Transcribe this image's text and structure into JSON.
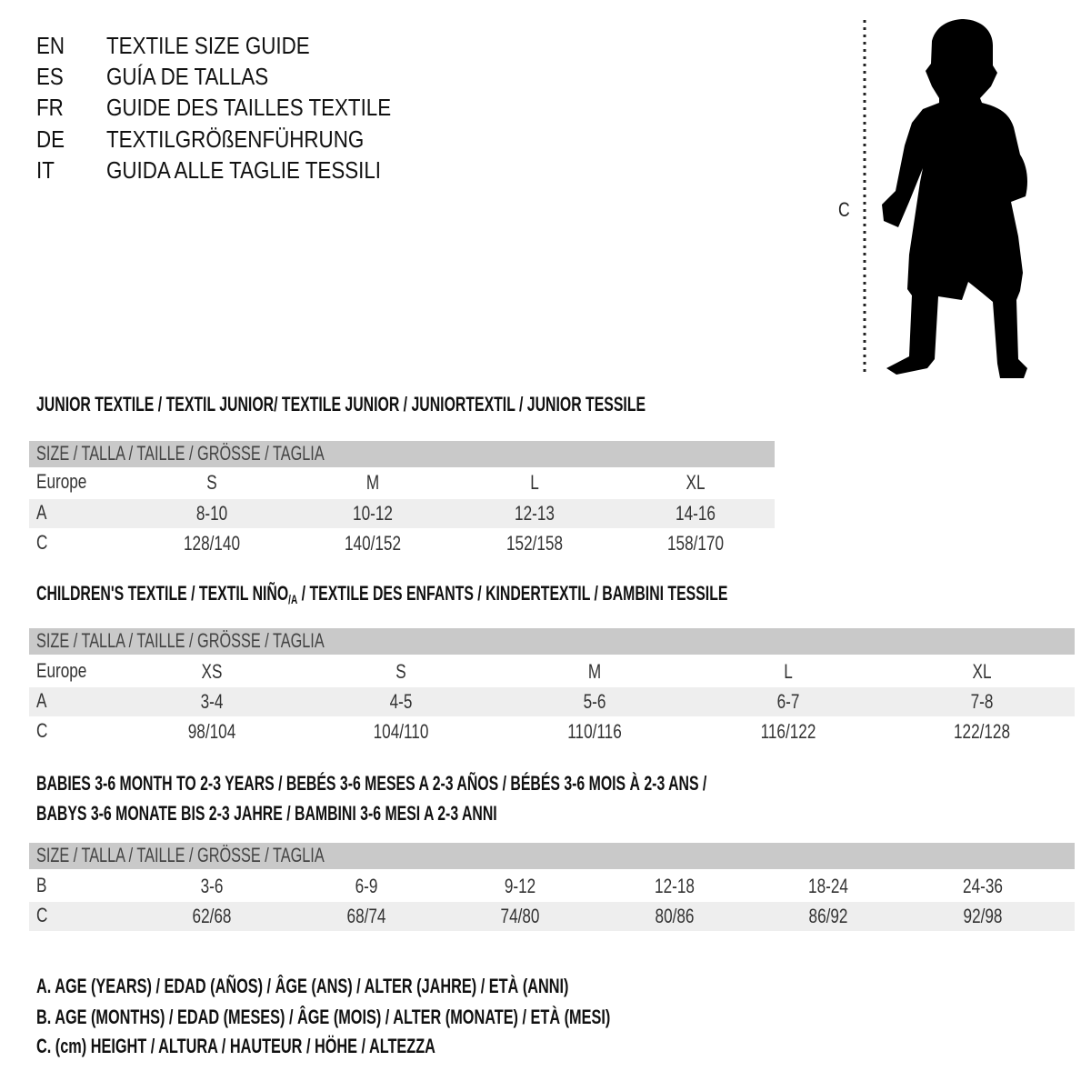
{
  "title_block": [
    {
      "lang": "EN",
      "text": "TEXTILE SIZE GUIDE"
    },
    {
      "lang": "ES",
      "text": "GUÍA DE TALLAS"
    },
    {
      "lang": "FR",
      "text": "GUIDE DES TAILLES TEXTILE"
    },
    {
      "lang": "DE",
      "text": "TEXTILGRÖßENFÜHRUNG"
    },
    {
      "lang": "IT",
      "text": "GUIDA ALLE TAGLIE TESSILI"
    }
  ],
  "figure": {
    "measure_label": "C",
    "icon": "child-silhouette-icon"
  },
  "size_header": "SIZE / TALLA / TAILLE / GRÖSSE / TAGLIA",
  "junior": {
    "heading": "JUNIOR TEXTILE / TEXTIL JUNIOR/ TEXTILE JUNIOR / JUNIORTEXTIL / JUNIOR TESSILE",
    "rows": [
      {
        "label": "Europe",
        "values": [
          "S",
          "M",
          "L",
          "XL"
        ]
      },
      {
        "label": "A",
        "values": [
          "8-10",
          "10-12",
          "12-13",
          "14-16"
        ]
      },
      {
        "label": "C",
        "values": [
          "128/140",
          "140/152",
          "152/158",
          "158/170"
        ]
      }
    ]
  },
  "children": {
    "heading_pre": "CHILDREN'S TEXTILE / TEXTIL NIÑO",
    "heading_sub": "/A",
    "heading_post": " / TEXTILE DES ENFANTS / KINDERTEXTIL / BAMBINI TESSILE",
    "rows": [
      {
        "label": "Europe",
        "values": [
          "XS",
          "S",
          "M",
          "L",
          "XL"
        ]
      },
      {
        "label": "A",
        "values": [
          "3-4",
          "4-5",
          "5-6",
          "6-7",
          "7-8"
        ]
      },
      {
        "label": "C",
        "values": [
          "98/104",
          "104/110",
          "110/116",
          "116/122",
          "122/128"
        ]
      }
    ]
  },
  "babies": {
    "heading_line1": "BABIES 3-6 MONTH TO 2-3 YEARS / BEBÉS 3-6 MESES A 2-3 AÑOS / BÉBÉS 3-6 MOIS À 2-3 ANS /",
    "heading_line2": "BABYS 3-6 MONATE BIS 2-3 JAHRE / BAMBINI 3-6 MESI A 2-3 ANNI",
    "rows": [
      {
        "label": "B",
        "values": [
          "3-6",
          "6-9",
          "9-12",
          "12-18",
          "18-24",
          "24-36"
        ]
      },
      {
        "label": "C",
        "values": [
          "62/68",
          "68/74",
          "74/80",
          "80/86",
          "86/92",
          "92/98"
        ]
      }
    ]
  },
  "legend": [
    "A. AGE (YEARS) / EDAD (AÑOS) / ÂGE (ANS) / ALTER (JAHRE) / ETÀ (ANNI)",
    "B. AGE (MONTHS) / EDAD (MESES) / ÂGE (MOIS) / ALTER (MONATE) / ETÀ (MESI)",
    "C. (cm) HEIGHT / ALTURA / HAUTEUR / HÖHE / ALTEZZA"
  ],
  "colors": {
    "header_bar": "#c9c9c9",
    "row_shade": "#eeeeee",
    "text": "#111111"
  }
}
